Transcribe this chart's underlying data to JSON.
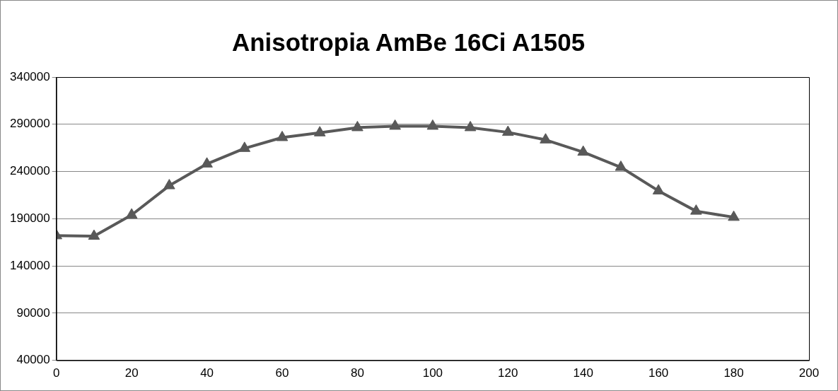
{
  "chart_data": {
    "type": "line",
    "title": "Anisotropia AmBe 16Ci A1505",
    "x": [
      0,
      10,
      20,
      30,
      40,
      50,
      60,
      70,
      80,
      90,
      100,
      110,
      120,
      130,
      140,
      150,
      160,
      170,
      180
    ],
    "series": [
      {
        "color": "#595959",
        "values": [
          172000,
          171500,
          194000,
          225000,
          248000,
          264500,
          276000,
          281000,
          286500,
          288000,
          288000,
          286500,
          281500,
          273500,
          260500,
          244500,
          219500,
          198000,
          191500
        ]
      }
    ],
    "xlim": [
      0,
      200
    ],
    "xticks": [
      0,
      20,
      40,
      60,
      80,
      100,
      120,
      140,
      160,
      180,
      200
    ],
    "ylim": [
      40000,
      340000
    ],
    "yticks": [
      40000,
      90000,
      140000,
      190000,
      240000,
      290000,
      340000
    ],
    "grid": "y",
    "legend": false,
    "marker": "triangle",
    "line_style": "solid"
  }
}
